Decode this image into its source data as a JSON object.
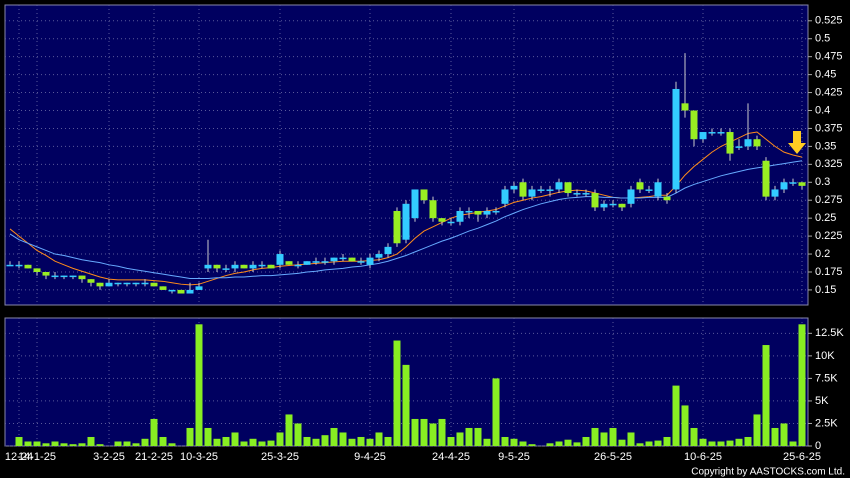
{
  "chart_data": [
    {
      "type": "candlestick",
      "up_color": "#33ccff",
      "down_color": "#99ee22",
      "ylim": [
        0.129,
        0.547
      ],
      "yticks": [
        0.15,
        0.175,
        0.2,
        0.225,
        0.25,
        0.275,
        0.3,
        0.325,
        0.35,
        0.375,
        0.4,
        0.425,
        0.45,
        0.475,
        0.5,
        0.525
      ],
      "grid": true,
      "open": [
        0.185,
        0.185,
        0.185,
        0.18,
        0.175,
        0.17,
        0.17,
        0.17,
        0.17,
        0.165,
        0.16,
        0.155,
        0.16,
        0.16,
        0.16,
        0.16,
        0.16,
        0.155,
        0.15,
        0.15,
        0.145,
        0.15,
        0.18,
        0.185,
        0.18,
        0.18,
        0.185,
        0.18,
        0.185,
        0.185,
        0.185,
        0.19,
        0.185,
        0.185,
        0.19,
        0.19,
        0.19,
        0.195,
        0.195,
        0.19,
        0.185,
        0.195,
        0.2,
        0.26,
        0.22,
        0.25,
        0.29,
        0.275,
        0.25,
        0.245,
        0.245,
        0.26,
        0.26,
        0.255,
        0.26,
        0.27,
        0.29,
        0.3,
        0.28,
        0.29,
        0.29,
        0.29,
        0.3,
        0.285,
        0.285,
        0.285,
        0.265,
        0.27,
        0.27,
        0.27,
        0.3,
        0.29,
        0.28,
        0.28,
        0.29,
        0.41,
        0.4,
        0.36,
        0.37,
        0.37,
        0.37,
        0.35,
        0.35,
        0.36,
        0.33,
        0.28,
        0.29,
        0.3,
        0.3
      ],
      "high": [
        0.19,
        0.19,
        0.185,
        0.18,
        0.175,
        0.175,
        0.17,
        0.17,
        0.17,
        0.165,
        0.16,
        0.165,
        0.16,
        0.16,
        0.16,
        0.165,
        0.16,
        0.155,
        0.15,
        0.15,
        0.16,
        0.16,
        0.22,
        0.185,
        0.185,
        0.19,
        0.185,
        0.19,
        0.19,
        0.185,
        0.205,
        0.19,
        0.19,
        0.19,
        0.195,
        0.195,
        0.195,
        0.2,
        0.195,
        0.195,
        0.2,
        0.205,
        0.215,
        0.265,
        0.275,
        0.29,
        0.29,
        0.28,
        0.25,
        0.25,
        0.265,
        0.265,
        0.26,
        0.265,
        0.265,
        0.295,
        0.3,
        0.305,
        0.295,
        0.295,
        0.295,
        0.305,
        0.3,
        0.29,
        0.29,
        0.29,
        0.275,
        0.275,
        0.27,
        0.295,
        0.305,
        0.295,
        0.305,
        0.285,
        0.44,
        0.48,
        0.4,
        0.37,
        0.375,
        0.375,
        0.375,
        0.36,
        0.41,
        0.365,
        0.335,
        0.295,
        0.305,
        0.305,
        0.3
      ],
      "low": [
        0.185,
        0.18,
        0.18,
        0.17,
        0.165,
        0.165,
        0.165,
        0.165,
        0.16,
        0.155,
        0.15,
        0.155,
        0.155,
        0.155,
        0.155,
        0.155,
        0.155,
        0.15,
        0.145,
        0.145,
        0.145,
        0.15,
        0.175,
        0.175,
        0.175,
        0.175,
        0.18,
        0.175,
        0.18,
        0.18,
        0.18,
        0.185,
        0.18,
        0.185,
        0.185,
        0.185,
        0.185,
        0.19,
        0.19,
        0.185,
        0.18,
        0.19,
        0.195,
        0.21,
        0.215,
        0.245,
        0.27,
        0.245,
        0.24,
        0.24,
        0.24,
        0.25,
        0.245,
        0.25,
        0.255,
        0.265,
        0.285,
        0.275,
        0.275,
        0.285,
        0.28,
        0.285,
        0.28,
        0.28,
        0.28,
        0.26,
        0.26,
        0.265,
        0.26,
        0.265,
        0.285,
        0.285,
        0.275,
        0.27,
        0.285,
        0.39,
        0.35,
        0.355,
        0.365,
        0.365,
        0.33,
        0.345,
        0.345,
        0.345,
        0.275,
        0.275,
        0.285,
        0.295,
        0.29
      ],
      "close": [
        0.185,
        0.185,
        0.18,
        0.175,
        0.17,
        0.17,
        0.17,
        0.17,
        0.165,
        0.16,
        0.155,
        0.16,
        0.16,
        0.16,
        0.16,
        0.16,
        0.155,
        0.15,
        0.15,
        0.145,
        0.15,
        0.155,
        0.185,
        0.18,
        0.18,
        0.185,
        0.18,
        0.185,
        0.185,
        0.18,
        0.2,
        0.185,
        0.185,
        0.19,
        0.19,
        0.19,
        0.195,
        0.195,
        0.19,
        0.19,
        0.195,
        0.2,
        0.21,
        0.215,
        0.27,
        0.29,
        0.275,
        0.25,
        0.245,
        0.245,
        0.26,
        0.26,
        0.255,
        0.26,
        0.26,
        0.29,
        0.295,
        0.28,
        0.29,
        0.29,
        0.29,
        0.3,
        0.285,
        0.285,
        0.285,
        0.265,
        0.27,
        0.27,
        0.265,
        0.29,
        0.29,
        0.29,
        0.3,
        0.275,
        0.43,
        0.4,
        0.36,
        0.37,
        0.37,
        0.37,
        0.34,
        0.35,
        0.36,
        0.35,
        0.28,
        0.29,
        0.3,
        0.3,
        0.295
      ],
      "ma": [
        {
          "color": "#ff8c1a",
          "values": [
            0.235,
            0.225,
            0.215,
            0.205,
            0.198,
            0.19,
            0.185,
            0.18,
            0.176,
            0.172,
            0.168,
            0.165,
            0.164,
            0.164,
            0.164,
            0.164,
            0.163,
            0.162,
            0.16,
            0.158,
            0.157,
            0.158,
            0.162,
            0.166,
            0.17,
            0.173,
            0.175,
            0.178,
            0.18,
            0.181,
            0.183,
            0.184,
            0.185,
            0.186,
            0.187,
            0.188,
            0.189,
            0.19,
            0.19,
            0.19,
            0.191,
            0.192,
            0.195,
            0.2,
            0.21,
            0.222,
            0.232,
            0.238,
            0.244,
            0.25,
            0.254,
            0.256,
            0.258,
            0.26,
            0.262,
            0.267,
            0.272,
            0.275,
            0.278,
            0.28,
            0.283,
            0.286,
            0.288,
            0.289,
            0.288,
            0.285,
            0.282,
            0.279,
            0.278,
            0.278,
            0.279,
            0.28,
            0.282,
            0.282,
            0.295,
            0.31,
            0.322,
            0.332,
            0.342,
            0.35,
            0.356,
            0.362,
            0.368,
            0.37,
            0.36,
            0.35,
            0.342,
            0.338,
            0.335
          ]
        },
        {
          "color": "#66aaff",
          "values": [
            0.228,
            0.22,
            0.215,
            0.21,
            0.205,
            0.2,
            0.198,
            0.195,
            0.192,
            0.19,
            0.188,
            0.185,
            0.183,
            0.18,
            0.178,
            0.176,
            0.174,
            0.172,
            0.17,
            0.168,
            0.166,
            0.166,
            0.166,
            0.167,
            0.167,
            0.168,
            0.168,
            0.169,
            0.17,
            0.17,
            0.171,
            0.172,
            0.173,
            0.175,
            0.176,
            0.178,
            0.179,
            0.18,
            0.182,
            0.183,
            0.185,
            0.187,
            0.19,
            0.194,
            0.198,
            0.203,
            0.208,
            0.213,
            0.218,
            0.222,
            0.227,
            0.232,
            0.236,
            0.241,
            0.246,
            0.252,
            0.257,
            0.262,
            0.266,
            0.27,
            0.273,
            0.276,
            0.278,
            0.279,
            0.28,
            0.28,
            0.279,
            0.279,
            0.278,
            0.278,
            0.278,
            0.279,
            0.279,
            0.279,
            0.285,
            0.292,
            0.297,
            0.301,
            0.305,
            0.309,
            0.312,
            0.315,
            0.318,
            0.32,
            0.322,
            0.324,
            0.326,
            0.328,
            0.33
          ]
        }
      ]
    },
    {
      "type": "bar",
      "color": "#88ee22",
      "ylim": [
        0,
        14200
      ],
      "yticks": [
        0,
        {
          "value": 2500,
          "label": "2.5K"
        },
        {
          "value": 5000,
          "label": "5K"
        },
        {
          "value": 7500,
          "label": "7.5K"
        },
        {
          "value": 10000,
          "label": "10K"
        },
        {
          "value": 12500,
          "label": "12.5K"
        }
      ],
      "grid": true,
      "categories": [
        null,
        "12-24",
        null,
        "14-1-25",
        null,
        null,
        null,
        null,
        null,
        null,
        null,
        "3-2-25",
        null,
        null,
        null,
        null,
        "21-2-25",
        null,
        null,
        null,
        null,
        "10-3-25",
        null,
        null,
        null,
        null,
        null,
        null,
        null,
        null,
        "25-3-25",
        null,
        null,
        null,
        null,
        null,
        null,
        null,
        null,
        null,
        "9-4-25",
        null,
        null,
        null,
        null,
        null,
        null,
        null,
        null,
        "24-4-25",
        null,
        null,
        null,
        null,
        null,
        null,
        "9-5-25",
        null,
        null,
        null,
        null,
        null,
        null,
        null,
        null,
        null,
        null,
        "26-5-25",
        null,
        null,
        null,
        null,
        null,
        null,
        null,
        null,
        null,
        "10-6-25",
        null,
        null,
        null,
        null,
        null,
        null,
        null,
        null,
        null,
        null,
        "25-6-25"
      ],
      "values": [
        0,
        1000,
        500,
        500,
        300,
        500,
        300,
        200,
        300,
        1000,
        200,
        0,
        500,
        500,
        300,
        800,
        3000,
        1000,
        300,
        0,
        2000,
        13500,
        2000,
        800,
        1000,
        1500,
        500,
        800,
        500,
        600,
        1500,
        3500,
        2500,
        1000,
        800,
        1200,
        2000,
        1500,
        800,
        1000,
        800,
        1500,
        1000,
        11700,
        9000,
        3000,
        3000,
        2500,
        3000,
        1000,
        1500,
        2000,
        2000,
        800,
        7500,
        1000,
        800,
        500,
        200,
        0,
        300,
        500,
        700,
        400,
        1000,
        2000,
        1500,
        2000,
        700,
        1500,
        300,
        500,
        600,
        1000,
        6700,
        4500,
        2000,
        800,
        500,
        500,
        600,
        800,
        1000,
        3500,
        11200,
        2000,
        2500,
        500,
        13500
      ],
      "credit": "Copyright by AASTOCKS.com Ltd."
    }
  ]
}
